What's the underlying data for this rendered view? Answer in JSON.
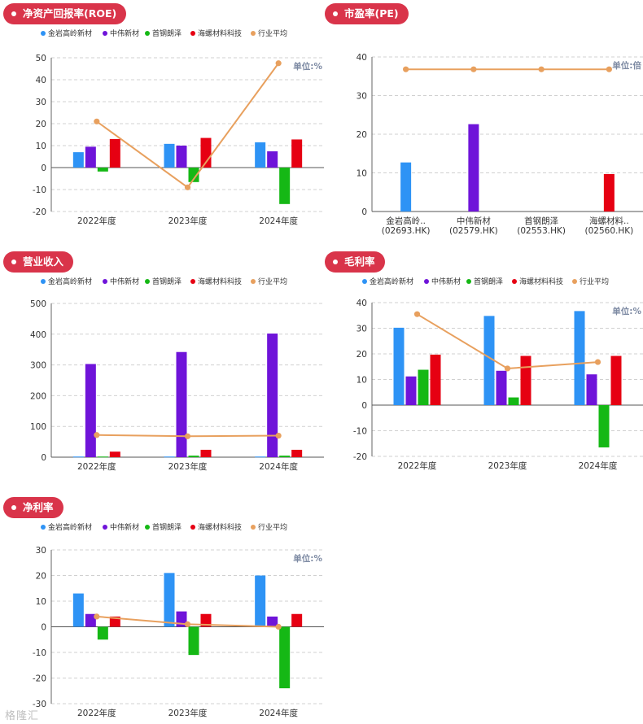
{
  "panels": {
    "roe": {
      "title": "净资产回报率(ROE)"
    },
    "pe": {
      "title": "市盈率(PE)"
    },
    "revenue": {
      "title": "营业收入"
    },
    "gross": {
      "title": "毛利率"
    },
    "net": {
      "title": "净利率"
    }
  },
  "colors": {
    "pill": "#d9344a",
    "series": [
      "#2e93f5",
      "#6f14d9",
      "#15b815",
      "#e60012"
    ],
    "average": "#e8a05e"
  },
  "legend": [
    "金岩高岭新材",
    "中伟新材",
    "首钢朗泽",
    "海螺材料科技",
    "行业平均"
  ],
  "watermark": "格隆汇",
  "chart_data": [
    {
      "id": "roe",
      "type": "bar",
      "title": "净资产回报率(ROE)",
      "unit_label": "单位:%",
      "categories": [
        "2022年度",
        "2023年度",
        "2024年度"
      ],
      "ylim": [
        -20,
        50
      ],
      "yticks": [
        -20,
        -10,
        0,
        10,
        20,
        30,
        40,
        50
      ],
      "series": [
        {
          "name": "金岩高岭新材",
          "values": [
            7,
            10.8,
            11.5
          ]
        },
        {
          "name": "中伟新材",
          "values": [
            9.5,
            10,
            7.4
          ]
        },
        {
          "name": "首钢朗泽",
          "values": [
            -1.8,
            -6.6,
            -16.6
          ]
        },
        {
          "name": "海螺材料科技",
          "values": [
            13,
            13.5,
            12.8
          ]
        }
      ],
      "line": {
        "name": "行业平均",
        "values": [
          21,
          -9,
          47.5
        ]
      }
    },
    {
      "id": "pe",
      "type": "bar",
      "title": "市盈率(PE)",
      "unit_label": "单位:倍",
      "categories": [
        "金岩高岭..\n(02693.HK)",
        "中伟新材\n(02579.HK)",
        "首钢朗泽\n(02553.HK)",
        "海螺材料..\n(02560.HK)"
      ],
      "ylim": [
        0,
        40
      ],
      "yticks": [
        0,
        10,
        20,
        30,
        40
      ],
      "values": [
        12.7,
        22.6,
        null,
        9.7
      ],
      "line": {
        "name": "行业平均",
        "values": [
          36.8,
          36.8,
          36.8,
          36.8
        ]
      }
    },
    {
      "id": "revenue",
      "type": "bar",
      "title": "营业收入",
      "unit_label": "",
      "categories": [
        "2022年度",
        "2023年度",
        "2024年度"
      ],
      "ylim": [
        0,
        500
      ],
      "yticks": [
        0,
        100,
        200,
        300,
        400,
        500
      ],
      "series": [
        {
          "name": "金岩高岭新材",
          "values": [
            2,
            2,
            2
          ]
        },
        {
          "name": "中伟新材",
          "values": [
            303,
            342,
            402
          ]
        },
        {
          "name": "首钢朗泽",
          "values": [
            2,
            5,
            5
          ]
        },
        {
          "name": "海螺材料科技",
          "values": [
            18,
            24,
            24
          ]
        }
      ],
      "line": {
        "name": "行业平均",
        "values": [
          72,
          68,
          70
        ]
      }
    },
    {
      "id": "gross",
      "type": "bar",
      "title": "毛利率",
      "unit_label": "单位:%",
      "categories": [
        "2022年度",
        "2023年度",
        "2024年度"
      ],
      "ylim": [
        -20,
        40
      ],
      "yticks": [
        -20,
        -10,
        0,
        10,
        20,
        30,
        40
      ],
      "series": [
        {
          "name": "金岩高岭新材",
          "values": [
            30.2,
            34.8,
            36.7
          ]
        },
        {
          "name": "中伟新材",
          "values": [
            11.2,
            13.4,
            12
          ]
        },
        {
          "name": "首钢朗泽",
          "values": [
            13.8,
            3,
            -16.5
          ]
        },
        {
          "name": "海螺材料科技",
          "values": [
            19.7,
            19.2,
            19.2
          ]
        }
      ],
      "line": {
        "name": "行业平均",
        "values": [
          35.5,
          14.3,
          16.8
        ]
      }
    },
    {
      "id": "net",
      "type": "bar",
      "title": "净利率",
      "unit_label": "单位:%",
      "categories": [
        "2022年度",
        "2023年度",
        "2024年度"
      ],
      "ylim": [
        -30,
        30
      ],
      "yticks": [
        -30,
        -20,
        -10,
        0,
        10,
        20,
        30
      ],
      "series": [
        {
          "name": "金岩高岭新材",
          "values": [
            13,
            21,
            20
          ]
        },
        {
          "name": "中伟新材",
          "values": [
            5,
            6,
            4
          ]
        },
        {
          "name": "首钢朗泽",
          "values": [
            -5,
            -11,
            -24
          ]
        },
        {
          "name": "海螺材料科技",
          "values": [
            4,
            5,
            5
          ]
        }
      ],
      "line": {
        "name": "行业平均",
        "values": [
          4,
          1,
          0
        ]
      }
    }
  ]
}
